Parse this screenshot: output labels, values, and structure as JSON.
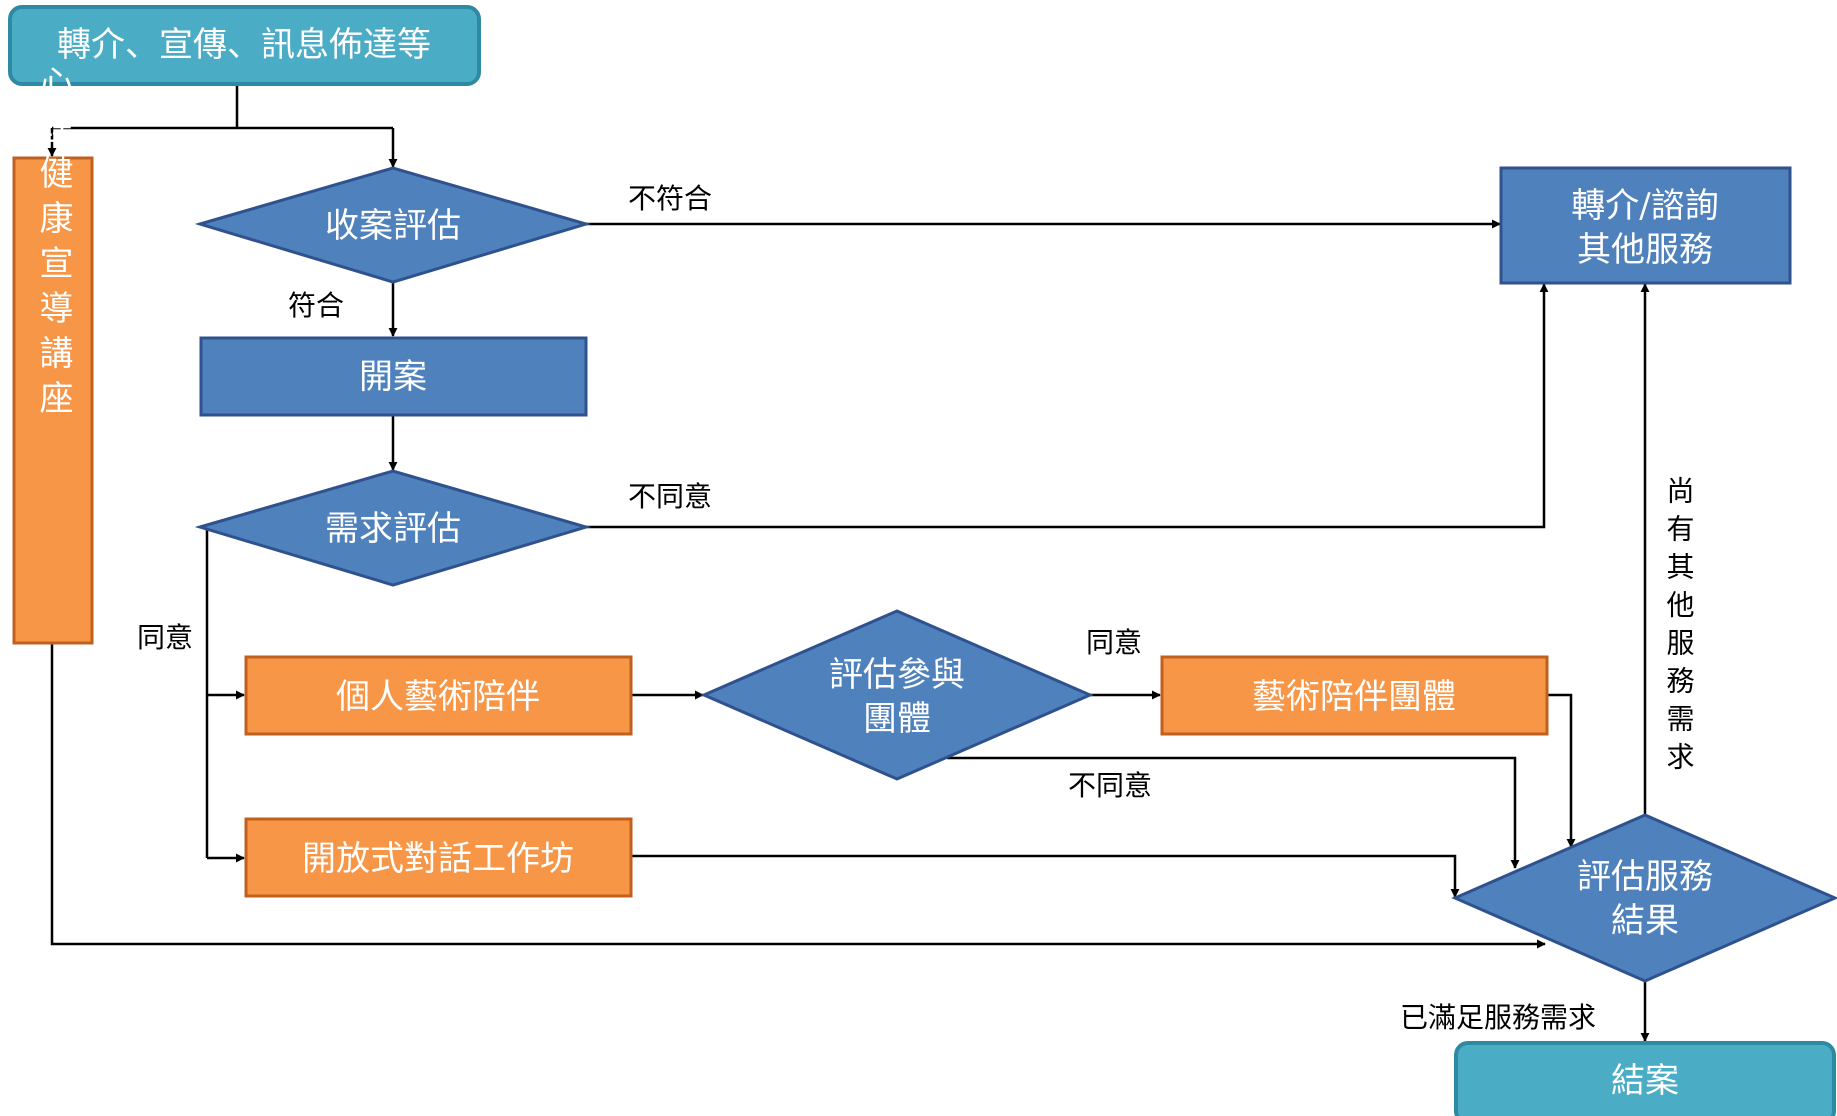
{
  "nodes": {
    "referral_promo": "轉介、宣傳、訊息佈達等",
    "mental_health_talk": "心理健康宣導講座",
    "intake_assessment": "收案評估",
    "open_case": "開案",
    "needs_assessment": "需求評估",
    "refer_other_line1": "轉介/諮詢",
    "refer_other_line2": "其他服務",
    "individual_art": "個人藝術陪伴",
    "assess_group_line1": "評估參與",
    "assess_group_line2": "團體",
    "art_group": "藝術陪伴團體",
    "open_dialogue": "開放式對話工作坊",
    "evaluate_line1": "評估服務",
    "evaluate_line2": "結果",
    "close_case": "結案"
  },
  "edge_labels": {
    "not_eligible": "不符合",
    "eligible": "符合",
    "disagree_needs": "不同意",
    "agree_needs": "同意",
    "agree_group": "同意",
    "disagree_group": "不同意",
    "other_needs": "尚有其他服務需求",
    "needs_met": "已滿足服務需求"
  },
  "colors": {
    "teal": "#4bacc6",
    "teal_border": "#2e8aa3",
    "blue": "#4f81bd",
    "blue_border": "#2f528f",
    "orange": "#f79646",
    "orange_border": "#c0601e"
  }
}
